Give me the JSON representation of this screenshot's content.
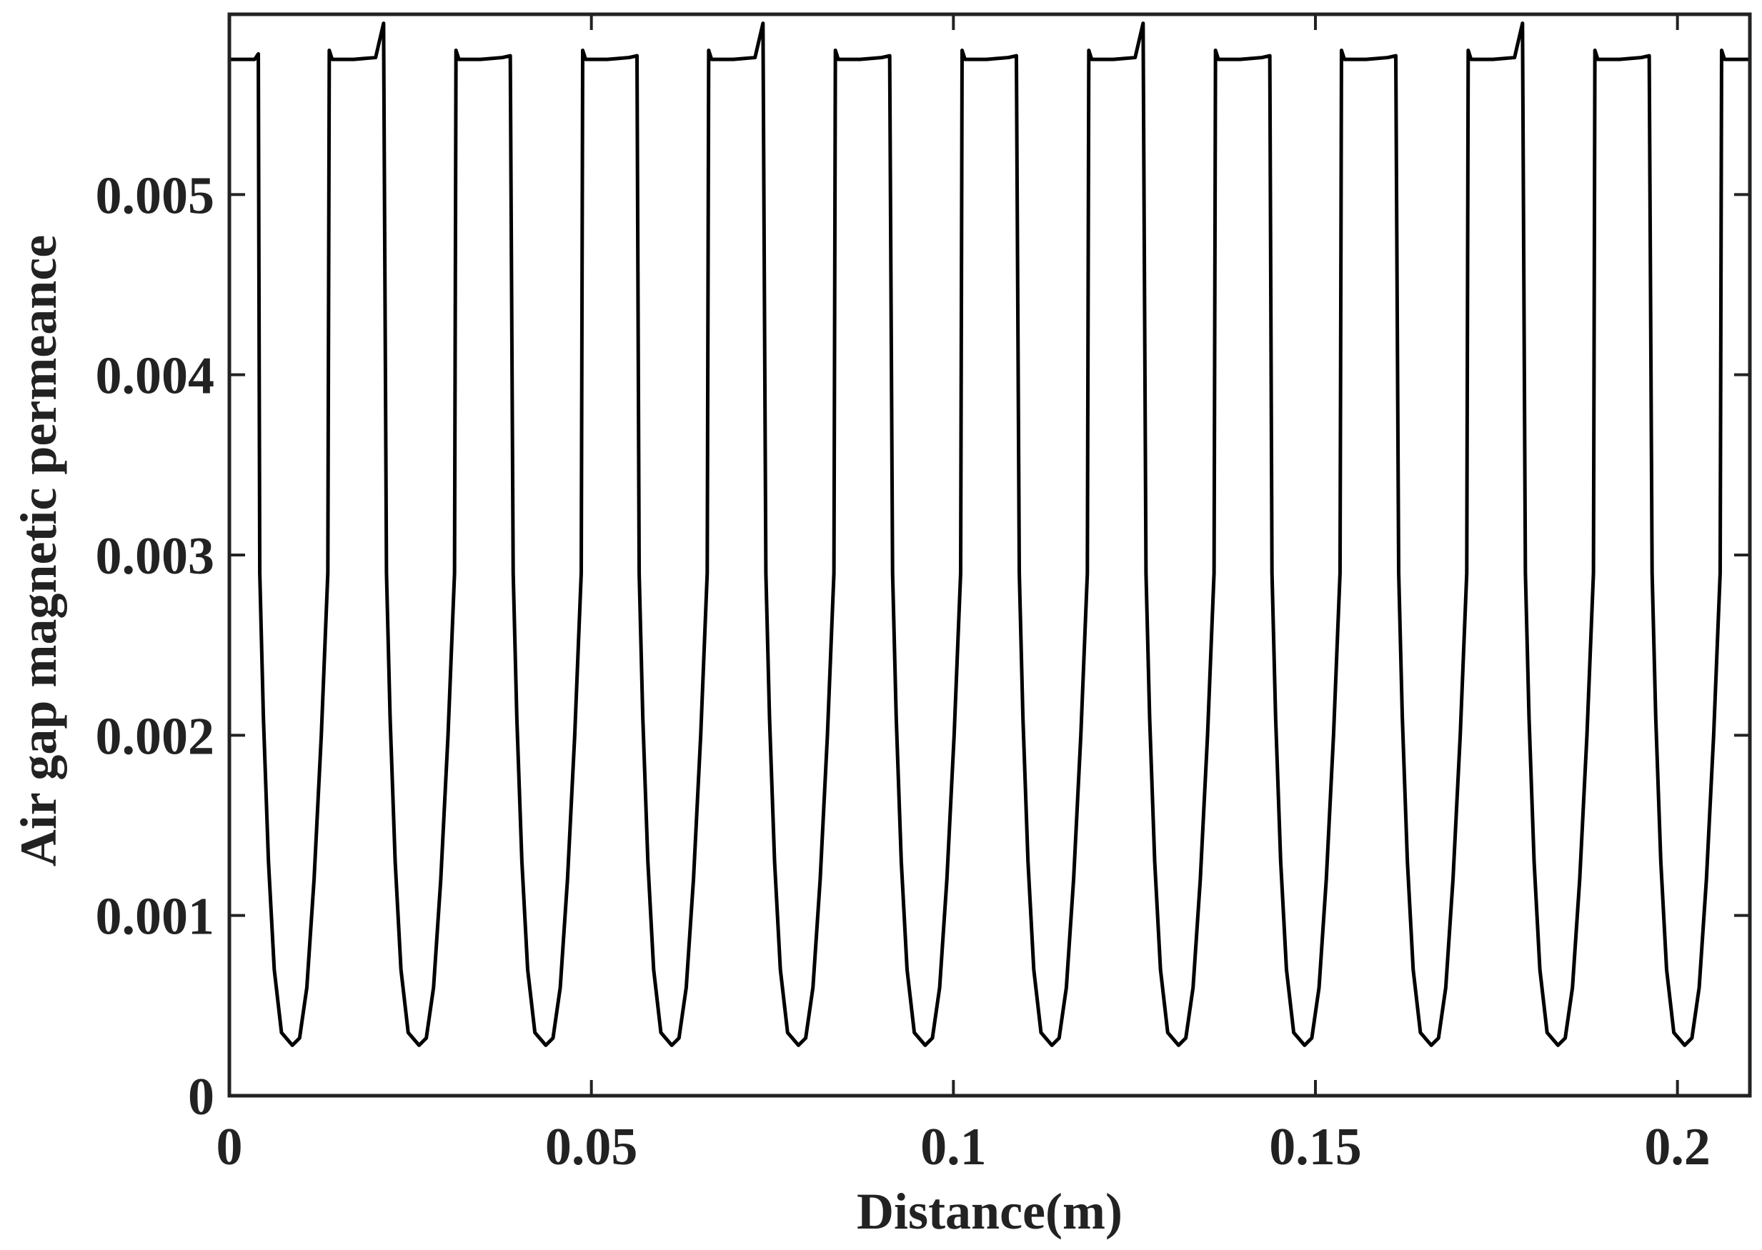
{
  "chart_data": {
    "type": "line",
    "xlabel": "Distance(m)",
    "ylabel": "Air gap magnetic permeance",
    "xlim": [
      0,
      0.21
    ],
    "ylim": [
      0,
      0.006
    ],
    "xticks": [
      0,
      0.05,
      0.1,
      0.15,
      0.2
    ],
    "yticks": [
      0,
      0.001,
      0.002,
      0.003,
      0.004,
      0.005
    ],
    "series": [
      {
        "color": "#000000",
        "x": [
          0,
          0.0035,
          0.004,
          0.0042,
          0.0047,
          0.0054,
          0.0062,
          0.0072,
          0.0087,
          0.0097,
          0.0107,
          0.0117,
          0.0127,
          0.0136,
          0.0138,
          0.0142,
          0.0172,
          0.0202,
          0.0213,
          0.0217,
          0.0222,
          0.0229,
          0.0237,
          0.0247,
          0.0262,
          0.0272,
          0.0282,
          0.0292,
          0.0302,
          0.0311,
          0.0313,
          0.0317,
          0.0347,
          0.0377,
          0.0388,
          0.0392,
          0.0397,
          0.0404,
          0.0412,
          0.0422,
          0.0437,
          0.0447,
          0.0457,
          0.0467,
          0.0477,
          0.0486,
          0.0488,
          0.0492,
          0.0522,
          0.0552,
          0.0563,
          0.0566,
          0.0571,
          0.0578,
          0.0586,
          0.0596,
          0.0611,
          0.0621,
          0.0631,
          0.0641,
          0.0651,
          0.066,
          0.0662,
          0.0666,
          0.0696,
          0.0726,
          0.0737,
          0.0741,
          0.0746,
          0.0753,
          0.0761,
          0.0771,
          0.0786,
          0.0796,
          0.0806,
          0.0816,
          0.0826,
          0.0835,
          0.0837,
          0.0841,
          0.0871,
          0.0901,
          0.0912,
          0.0916,
          0.0921,
          0.0928,
          0.0936,
          0.0946,
          0.0961,
          0.0971,
          0.0981,
          0.0991,
          0.1001,
          0.101,
          0.1012,
          0.1016,
          0.1046,
          0.1076,
          0.1087,
          0.1091,
          0.1096,
          0.1103,
          0.1111,
          0.1121,
          0.1136,
          0.1146,
          0.1156,
          0.1166,
          0.1176,
          0.1185,
          0.1187,
          0.1191,
          0.1221,
          0.1251,
          0.1262,
          0.1266,
          0.1271,
          0.1278,
          0.1286,
          0.1296,
          0.1311,
          0.1321,
          0.1331,
          0.1341,
          0.1351,
          0.136,
          0.1362,
          0.1366,
          0.1396,
          0.1426,
          0.1437,
          0.144,
          0.1445,
          0.1452,
          0.146,
          0.147,
          0.1485,
          0.1495,
          0.1505,
          0.1515,
          0.1525,
          0.1534,
          0.1536,
          0.154,
          0.157,
          0.16,
          0.1611,
          0.1615,
          0.162,
          0.1627,
          0.1635,
          0.1645,
          0.166,
          0.167,
          0.168,
          0.169,
          0.17,
          0.1709,
          0.1711,
          0.1715,
          0.1745,
          0.1775,
          0.1786,
          0.179,
          0.1795,
          0.1802,
          0.181,
          0.182,
          0.1835,
          0.1845,
          0.1855,
          0.1865,
          0.1875,
          0.1884,
          0.1886,
          0.189,
          0.192,
          0.195,
          0.1961,
          0.1965,
          0.197,
          0.1977,
          0.1985,
          0.1995,
          0.201,
          0.202,
          0.203,
          0.204,
          0.205,
          0.2059,
          0.2061,
          0.2065,
          0.21
        ],
        "values": [
          0.00575,
          0.00575,
          0.00578,
          0.0029,
          0.0021,
          0.0013,
          0.0007,
          0.00035,
          0.00028,
          0.00032,
          0.0006,
          0.0012,
          0.002,
          0.0029,
          0.0058,
          0.00575,
          0.00575,
          0.00576,
          0.00595,
          0.0029,
          0.0021,
          0.0013,
          0.0007,
          0.00035,
          0.00028,
          0.00032,
          0.0006,
          0.0012,
          0.002,
          0.0029,
          0.0058,
          0.00575,
          0.00575,
          0.00576,
          0.00577,
          0.0029,
          0.0021,
          0.0013,
          0.0007,
          0.00035,
          0.00028,
          0.00032,
          0.0006,
          0.0012,
          0.002,
          0.0029,
          0.0058,
          0.00575,
          0.00575,
          0.00576,
          0.00577,
          0.0029,
          0.0021,
          0.0013,
          0.0007,
          0.00035,
          0.00028,
          0.00032,
          0.0006,
          0.0012,
          0.002,
          0.0029,
          0.0058,
          0.00575,
          0.00575,
          0.00576,
          0.00595,
          0.0029,
          0.0021,
          0.0013,
          0.0007,
          0.00035,
          0.00028,
          0.00032,
          0.0006,
          0.0012,
          0.002,
          0.0029,
          0.0058,
          0.00575,
          0.00575,
          0.00576,
          0.00577,
          0.0029,
          0.0021,
          0.0013,
          0.0007,
          0.00035,
          0.00028,
          0.00032,
          0.0006,
          0.0012,
          0.002,
          0.0029,
          0.0058,
          0.00575,
          0.00575,
          0.00576,
          0.00577,
          0.0029,
          0.0021,
          0.0013,
          0.0007,
          0.00035,
          0.00028,
          0.00032,
          0.0006,
          0.0012,
          0.002,
          0.0029,
          0.0058,
          0.00575,
          0.00575,
          0.00576,
          0.00595,
          0.0029,
          0.0021,
          0.0013,
          0.0007,
          0.00035,
          0.00028,
          0.00032,
          0.0006,
          0.0012,
          0.002,
          0.0029,
          0.0058,
          0.00575,
          0.00575,
          0.00576,
          0.00577,
          0.0029,
          0.0021,
          0.0013,
          0.0007,
          0.00035,
          0.00028,
          0.00032,
          0.0006,
          0.0012,
          0.002,
          0.0029,
          0.0058,
          0.00575,
          0.00575,
          0.00576,
          0.00577,
          0.0029,
          0.0021,
          0.0013,
          0.0007,
          0.00035,
          0.00028,
          0.00032,
          0.0006,
          0.0012,
          0.002,
          0.0029,
          0.0058,
          0.00575,
          0.00575,
          0.00576,
          0.00595,
          0.0029,
          0.0021,
          0.0013,
          0.0007,
          0.00035,
          0.00028,
          0.00032,
          0.0006,
          0.0012,
          0.002,
          0.0029,
          0.0058,
          0.00575,
          0.00575,
          0.00576,
          0.00577,
          0.0029,
          0.0021,
          0.0013,
          0.0007,
          0.00035,
          0.00028,
          0.00032,
          0.0006,
          0.0012,
          0.002,
          0.0029,
          0.0058,
          0.00575,
          0.00575
        ]
      }
    ]
  }
}
